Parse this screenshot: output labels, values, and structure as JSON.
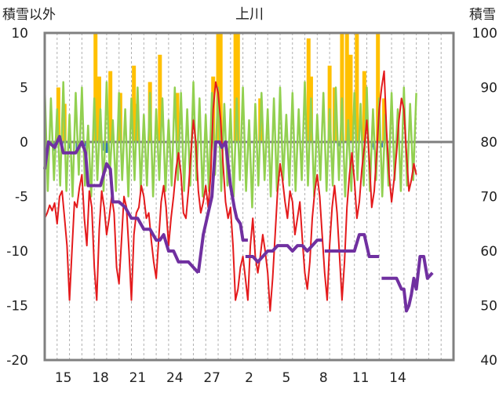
{
  "chart_data": {
    "type": "line",
    "title": "上川",
    "left_axis_label": "積雪以外",
    "right_axis_label": "積雪",
    "left_ylim": [
      -20,
      10
    ],
    "left_yticks": [
      10,
      5,
      0,
      -5,
      -10,
      -15,
      -20
    ],
    "right_ylim": [
      40,
      100
    ],
    "right_yticks": [
      100,
      90,
      80,
      70,
      60,
      50,
      40
    ],
    "x_range": [
      0,
      33
    ],
    "x_ticks": [
      {
        "x": 1.5,
        "label": "15"
      },
      {
        "x": 4.5,
        "label": "18"
      },
      {
        "x": 7.5,
        "label": "21"
      },
      {
        "x": 10.5,
        "label": "24"
      },
      {
        "x": 13.5,
        "label": "27"
      },
      {
        "x": 16.5,
        "label": "2"
      },
      {
        "x": 19.5,
        "label": "5"
      },
      {
        "x": 22.5,
        "label": "8"
      },
      {
        "x": 25.5,
        "label": "11"
      },
      {
        "x": 28.5,
        "label": "14"
      }
    ],
    "grid": "vertical dashed daily",
    "colors": {
      "temperature": "#e41a1c",
      "sunshine": "#92d050",
      "snowfall": "#ffc000",
      "precipitation": "#2e75b6",
      "snow_depth": "#7030a0",
      "zero_line": "#7f7f7f",
      "frame": "#808080"
    },
    "series": [
      {
        "key": "temperature",
        "axis": "left",
        "x": [
          0.0,
          0.2,
          0.4,
          0.6,
          0.8,
          1.0,
          1.2,
          1.4,
          1.6,
          1.8,
          2.0,
          2.2,
          2.4,
          2.6,
          2.8,
          3.0,
          3.2,
          3.4,
          3.6,
          3.8,
          4.0,
          4.2,
          4.4,
          4.6,
          4.8,
          5.0,
          5.2,
          5.4,
          5.6,
          5.8,
          6.0,
          6.2,
          6.4,
          6.6,
          6.8,
          7.0,
          7.2,
          7.4,
          7.6,
          7.8,
          8.0,
          8.2,
          8.4,
          8.6,
          8.8,
          9.0,
          9.2,
          9.4,
          9.6,
          9.8,
          10.0,
          10.2,
          10.4,
          10.6,
          10.8,
          11.0,
          11.2,
          11.4,
          11.6,
          11.8,
          12.0,
          12.2,
          12.4,
          12.6,
          12.8,
          13.0,
          13.2,
          13.4,
          13.6,
          13.8,
          14.0,
          14.2,
          14.4,
          14.6,
          14.8,
          15.0,
          15.2,
          15.4,
          15.6,
          15.8,
          16.0,
          16.2,
          16.4,
          16.6,
          16.8,
          17.0,
          17.2,
          17.4,
          17.6,
          17.8,
          18.0,
          18.2,
          18.4,
          18.6,
          18.8,
          19.0,
          19.2,
          19.4,
          19.6,
          19.8,
          20.0,
          20.2,
          20.4,
          20.6,
          20.8,
          21.0,
          21.2,
          21.4,
          21.6,
          21.8,
          22.0,
          22.2,
          22.4,
          22.6,
          22.8,
          23.0,
          23.2,
          23.4,
          23.6,
          23.8,
          24.0,
          24.2,
          24.4,
          24.6,
          24.8,
          25.0,
          25.2,
          25.4,
          25.6,
          25.8,
          26.0,
          26.2,
          26.4,
          26.6,
          26.8,
          27.0,
          27.2,
          27.4,
          27.6,
          27.8,
          28.0,
          28.2,
          28.4,
          28.6,
          28.8,
          29.0,
          29.2,
          29.4,
          29.6,
          29.8,
          30.0
        ],
        "values": [
          -7.0,
          -6.5,
          -5.8,
          -6.3,
          -5.6,
          -7.5,
          -5.0,
          -4.5,
          -7.0,
          -9.5,
          -14.5,
          -10.0,
          -5.5,
          -6.0,
          -4.2,
          -3.0,
          -7.0,
          -9.5,
          -4.5,
          -6.0,
          -11.5,
          -14.5,
          -8.0,
          -4.5,
          -6.0,
          -8.5,
          -7.0,
          -5.0,
          -6.5,
          -11.5,
          -13.0,
          -9.0,
          -5.0,
          -6.0,
          -10.0,
          -14.5,
          -8.5,
          -6.5,
          -6.0,
          -4.0,
          -5.0,
          -7.0,
          -6.5,
          -9.0,
          -11.0,
          -12.5,
          -9.0,
          -5.5,
          -4.0,
          -6.0,
          -9.5,
          -7.0,
          -5.0,
          -2.5,
          -1.0,
          -3.0,
          -6.5,
          -7.0,
          -4.5,
          -1.0,
          2.0,
          0.0,
          -4.5,
          -6.5,
          -5.5,
          -4.0,
          -6.0,
          -3.0,
          3.0,
          5.5,
          4.5,
          2.0,
          -2.0,
          -5.5,
          -7.0,
          -6.0,
          -9.5,
          -14.5,
          -13.5,
          -11.5,
          -10.5,
          -12.5,
          -14.5,
          -9.5,
          -7.0,
          -10.5,
          -12.0,
          -10.5,
          -8.5,
          -10.0,
          -12.0,
          -15.5,
          -12.5,
          -8.5,
          -4.5,
          -2.0,
          -3.5,
          -5.5,
          -7.0,
          -4.5,
          -5.5,
          -8.5,
          -7.0,
          -5.5,
          -9.0,
          -12.0,
          -13.5,
          -11.0,
          -7.0,
          -4.5,
          -3.0,
          -5.0,
          -8.5,
          -12.0,
          -14.5,
          -9.5,
          -6.0,
          -4.0,
          -6.5,
          -10.5,
          -14.5,
          -11.0,
          -6.0,
          -3.0,
          -1.0,
          -3.5,
          -7.0,
          -5.5,
          -2.5,
          -0.5,
          2.0,
          -1.5,
          -6.0,
          -4.5,
          -1.0,
          3.0,
          5.0,
          6.5,
          1.0,
          -3.0,
          -5.5,
          -3.5,
          -1.0,
          2.0,
          4.0,
          3.0,
          -1.0,
          -4.5,
          -3.5,
          -2.0,
          -3.0
        ]
      },
      {
        "key": "sunshine",
        "axis": "left",
        "x": [
          0.0,
          0.25,
          0.5,
          0.75,
          1.0,
          1.25,
          1.5,
          1.75,
          2.0,
          2.25,
          2.5,
          2.75,
          3.0,
          3.25,
          3.5,
          3.75,
          4.0,
          4.25,
          4.5,
          4.75,
          5.0,
          5.25,
          5.5,
          5.75,
          6.0,
          6.25,
          6.5,
          6.75,
          7.0,
          7.25,
          7.5,
          7.75,
          8.0,
          8.25,
          8.5,
          8.75,
          9.0,
          9.25,
          9.5,
          9.75,
          10.0,
          10.25,
          10.5,
          10.75,
          11.0,
          11.25,
          11.5,
          11.75,
          12.0,
          12.25,
          12.5,
          12.75,
          13.0,
          13.25,
          13.5,
          13.75,
          14.0,
          14.25,
          14.5,
          14.75,
          15.0,
          15.25,
          15.5,
          15.75,
          16.0,
          16.25,
          16.5,
          16.75,
          17.0,
          17.25,
          17.5,
          17.75,
          18.0,
          18.25,
          18.5,
          18.75,
          19.0,
          19.25,
          19.5,
          19.75,
          20.0,
          20.25,
          20.5,
          20.75,
          21.0,
          21.25,
          21.5,
          21.75,
          22.0,
          22.25,
          22.5,
          22.75,
          23.0,
          23.25,
          23.5,
          23.75,
          24.0,
          24.25,
          24.5,
          24.75,
          25.0,
          25.25,
          25.5,
          25.75,
          26.0,
          26.25,
          26.5,
          26.75,
          27.0,
          27.25,
          27.5,
          27.75,
          28.0,
          28.25,
          28.5,
          28.75,
          29.0,
          29.25,
          29.5,
          29.75,
          30.0
        ],
        "values": [
          5.0,
          -4.5,
          4.0,
          -3.5,
          3.0,
          -4.0,
          5.5,
          -4.5,
          2.5,
          -5.0,
          4.5,
          -3.0,
          5.0,
          -4.0,
          1.5,
          -5.0,
          4.0,
          -3.5,
          3.0,
          -4.5,
          5.5,
          -3.0,
          2.0,
          -4.5,
          4.5,
          -3.5,
          3.0,
          -5.0,
          4.0,
          -3.5,
          5.0,
          -4.5,
          2.5,
          -4.0,
          4.5,
          -5.0,
          3.0,
          -3.5,
          4.0,
          -4.5,
          2.0,
          -4.0,
          5.0,
          -3.5,
          4.5,
          -4.5,
          3.0,
          -4.0,
          5.5,
          -3.5,
          4.0,
          -5.0,
          2.5,
          -4.5,
          4.5,
          -3.0,
          5.0,
          -4.5,
          3.5,
          -4.0,
          3.0,
          -5.0,
          4.0,
          -3.5,
          5.0,
          -4.5,
          2.0,
          -6.0,
          3.5,
          -4.0,
          4.5,
          -3.5,
          3.0,
          -5.0,
          4.0,
          -4.5,
          5.0,
          -3.5,
          2.5,
          -4.0,
          4.5,
          -4.5,
          3.0,
          -3.5,
          5.5,
          -4.0,
          4.0,
          -5.0,
          2.5,
          -3.5,
          4.5,
          -4.5,
          3.0,
          -4.0,
          5.0,
          -3.5,
          4.0,
          -5.0,
          2.0,
          -4.5,
          4.5,
          -3.5,
          3.5,
          -4.0,
          5.0,
          -4.5,
          3.0,
          -3.5,
          4.0,
          -5.0,
          2.5,
          -4.0,
          4.5,
          -3.5,
          3.0,
          -4.5,
          5.0,
          -4.0,
          3.5,
          -3.5,
          4.5
        ]
      },
      {
        "key": "snowfall",
        "axis": "left",
        "type": "bar",
        "x": [
          1.1,
          1.6,
          4.1,
          4.4,
          5.3,
          6.1,
          7.2,
          7.4,
          8.5,
          9.3,
          10.7,
          13.6,
          14.0,
          14.2,
          15.4,
          15.6,
          17.4,
          21.3,
          21.5,
          23.0,
          23.4,
          24.0,
          24.4,
          24.7,
          25.2,
          25.8,
          26.9,
          27.4
        ],
        "values": [
          5.0,
          3.5,
          10.0,
          6.0,
          6.5,
          4.5,
          7.0,
          3.5,
          5.5,
          8.0,
          4.5,
          6.0,
          10.0,
          10.0,
          10.0,
          10.0,
          4.0,
          9.5,
          6.0,
          7.0,
          5.0,
          10.0,
          10.0,
          8.0,
          10.0,
          6.5,
          10.0,
          4.0
        ]
      },
      {
        "key": "precipitation",
        "axis": "left",
        "type": "bar",
        "x": [
          0.8,
          1.4,
          2.0,
          2.6,
          3.2,
          3.4,
          4.8,
          5.0,
          23.8,
          26.4,
          26.6,
          27.2
        ],
        "values": [
          -0.8,
          -0.5,
          -0.6,
          -0.9,
          -0.4,
          -0.6,
          -0.8,
          -1.0,
          -0.4,
          -0.5,
          -0.7,
          -0.5
        ]
      },
      {
        "key": "snow_depth",
        "axis": "right",
        "segments": [
          {
            "x": [
              0.0,
              0.3,
              0.8,
              1.2,
              1.5,
              2.0,
              2.5,
              3.0,
              3.3,
              3.5,
              4.0,
              4.5,
              5.0,
              5.3,
              5.5,
              6.0,
              6.5,
              7.0,
              7.5,
              8.0,
              8.5,
              9.0,
              9.3,
              9.6,
              10.0,
              10.4,
              10.8,
              11.2,
              11.6,
              12.0,
              12.4
            ],
            "values": [
              75,
              80,
              79,
              81,
              78,
              78,
              78,
              80,
              78,
              72,
              72,
              72,
              76,
              75,
              69,
              69,
              68,
              66,
              66,
              64,
              64,
              62,
              62,
              63,
              60,
              60,
              58,
              58,
              58,
              57,
              56
            ]
          },
          {
            "x": [
              12.4,
              12.8,
              13.1,
              13.5,
              13.8,
              14.1,
              14.3,
              14.6,
              15.0,
              15.3,
              15.5,
              15.8,
              16.0,
              16.4
            ],
            "values": [
              56,
              63,
              66,
              70,
              80,
              80,
              79,
              80,
              72,
              68,
              66,
              65,
              62,
              62
            ]
          },
          {
            "x": [
              16.2,
              16.8,
              17.2,
              17.6,
              18.0,
              18.4,
              18.8,
              19.2,
              19.6,
              20.0,
              20.4,
              20.8,
              21.2,
              21.6,
              22.0,
              22.4
            ],
            "values": [
              59,
              59,
              58,
              59,
              60,
              60,
              61,
              61,
              61,
              60,
              61,
              61,
              60,
              61,
              62,
              62
            ]
          },
          {
            "x": [
              22.6,
              23.0,
              23.4,
              23.8,
              24.2,
              24.6,
              25.0,
              25.4,
              25.8,
              26.2,
              26.6,
              27.0
            ],
            "values": [
              60,
              60,
              60,
              60,
              60,
              60,
              60,
              63,
              63,
              59,
              59,
              59
            ]
          },
          {
            "x": [
              27.2,
              27.6,
              28.0,
              28.4,
              28.8,
              29.0,
              29.2,
              29.4,
              29.6,
              29.8,
              30.0,
              30.3,
              30.6,
              30.9,
              31.3
            ],
            "values": [
              55,
              55,
              55,
              55,
              53,
              53,
              49,
              50,
              52,
              55,
              53,
              59,
              59,
              55,
              56
            ]
          }
        ]
      }
    ]
  }
}
